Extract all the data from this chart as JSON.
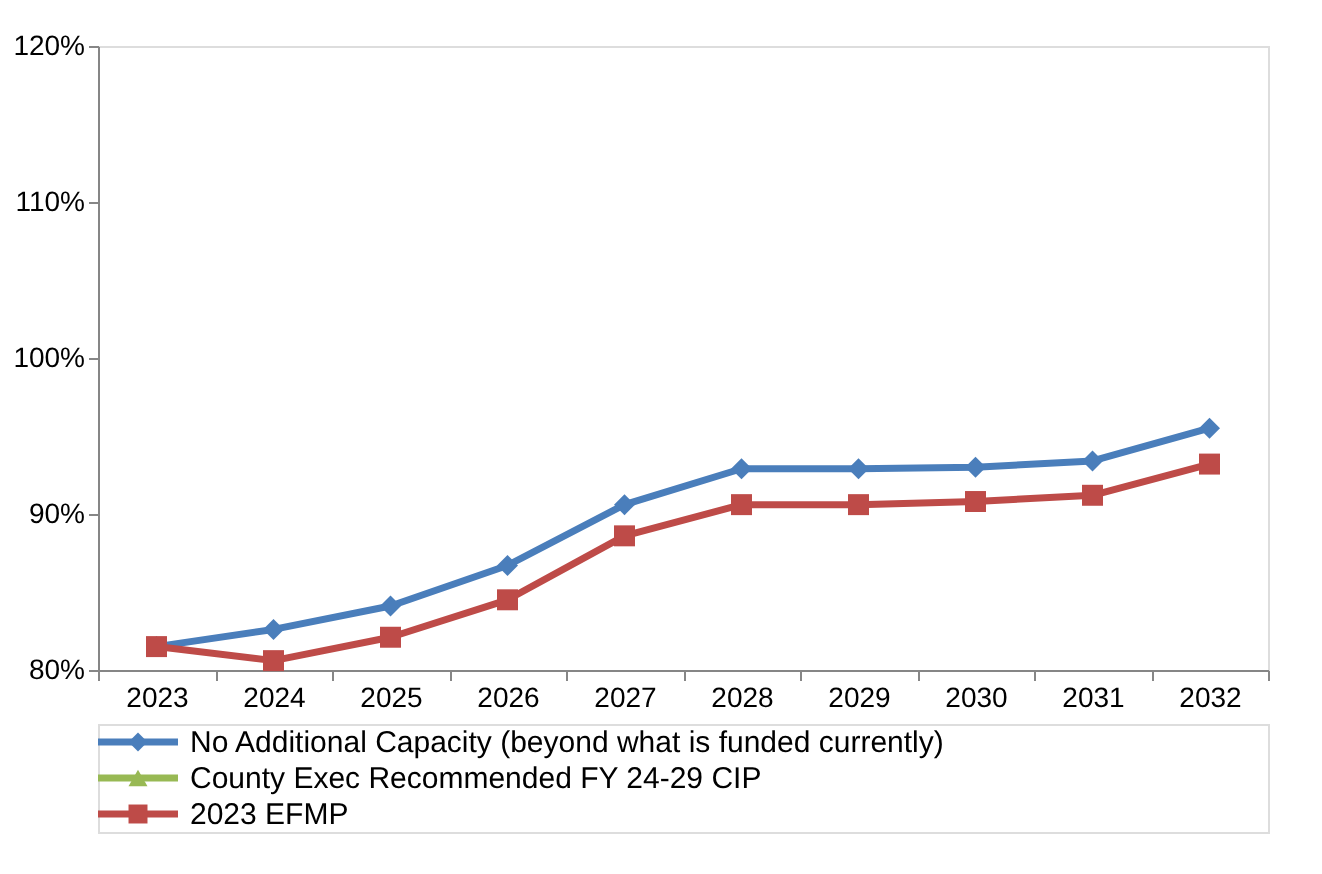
{
  "chart_data": {
    "type": "line",
    "categories": [
      "2023",
      "2024",
      "2025",
      "2026",
      "2027",
      "2028",
      "2029",
      "2030",
      "2031",
      "2032"
    ],
    "series": [
      {
        "name": "No Additional Capacity (beyond what is funded currently)",
        "color": "#4a7ebb",
        "marker": "diamond",
        "values": [
          81.5,
          82.6,
          84.1,
          86.7,
          90.6,
          92.9,
          92.9,
          93.0,
          93.4,
          95.5
        ]
      },
      {
        "name": "County Exec Recommended FY 24-29 CIP",
        "color": "#98b954",
        "marker": "triangle",
        "values": [
          null,
          null,
          null,
          null,
          null,
          null,
          null,
          null,
          null,
          null
        ]
      },
      {
        "name": "2023 EFMP",
        "color": "#be4b48",
        "marker": "square",
        "values": [
          81.5,
          80.6,
          82.1,
          84.5,
          88.6,
          90.6,
          90.6,
          90.8,
          91.2,
          93.2
        ]
      }
    ],
    "ylim": [
      80,
      120
    ],
    "yticks": [
      {
        "value": 80,
        "label": "80%"
      },
      {
        "value": 90,
        "label": "90%"
      },
      {
        "value": 100,
        "label": "100%"
      },
      {
        "value": 110,
        "label": "110%"
      },
      {
        "value": 120,
        "label": "120%"
      }
    ],
    "grid": false,
    "legend": "bottom",
    "line_style": "solid"
  }
}
